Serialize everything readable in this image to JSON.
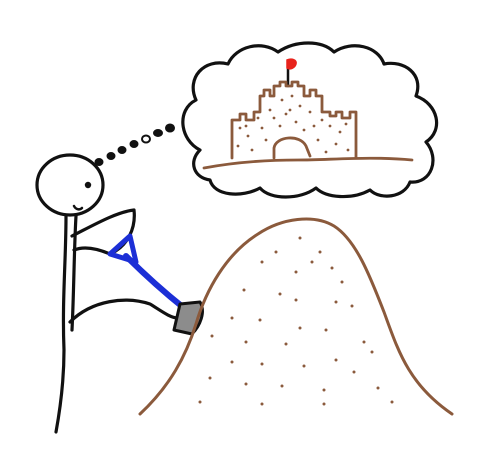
{
  "illustration": {
    "subject": "stick-figure-digging-sand-dreaming-of-sandcastle",
    "palette": {
      "ink": "#111111",
      "sand": "#8b5a3c",
      "shovel_handle": "#1c2fd6",
      "shovel_blade": "#8c8c8c",
      "flag": "#e8231c",
      "background": "#ffffff"
    },
    "icons": {
      "figure": "stick-figure-icon",
      "shovel": "shovel-icon",
      "sand_pile": "sand-pile-icon",
      "thought_bubble": "thought-bubble-icon",
      "castle": "sandcastle-icon",
      "flag": "flag-icon"
    }
  }
}
